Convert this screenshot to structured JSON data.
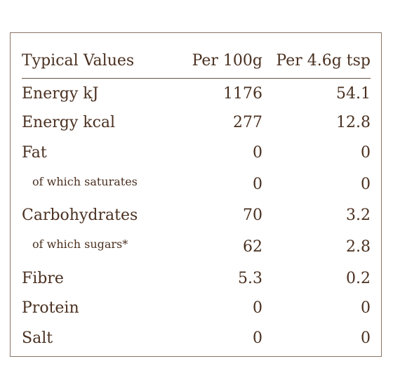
{
  "table": {
    "headers": [
      "Typical Values",
      "Per 100g",
      "Per 4.6g tsp"
    ],
    "rows": [
      {
        "label": "Energy kJ",
        "per100": "1176",
        "perServing": "54.1"
      },
      {
        "label": "Energy kcal",
        "per100": "277",
        "perServing": "12.8"
      },
      {
        "label": "Fat",
        "per100": "0",
        "perServing": "0"
      },
      {
        "label": "of which saturates",
        "per100": "0",
        "perServing": "0"
      },
      {
        "label": "Carbohydrates",
        "per100": "70",
        "perServing": "3.2"
      },
      {
        "label": "of which sugars*",
        "per100": "62",
        "perServing": "2.8"
      },
      {
        "label": "Fibre",
        "per100": "5.3",
        "perServing": "0.2"
      },
      {
        "label": "Protein",
        "per100": "0",
        "perServing": "0"
      },
      {
        "label": "Salt",
        "per100": "0",
        "perServing": "0"
      }
    ]
  },
  "colors": {
    "text": "#4a3020",
    "border": "#8a7566",
    "background": "#ffffff"
  }
}
